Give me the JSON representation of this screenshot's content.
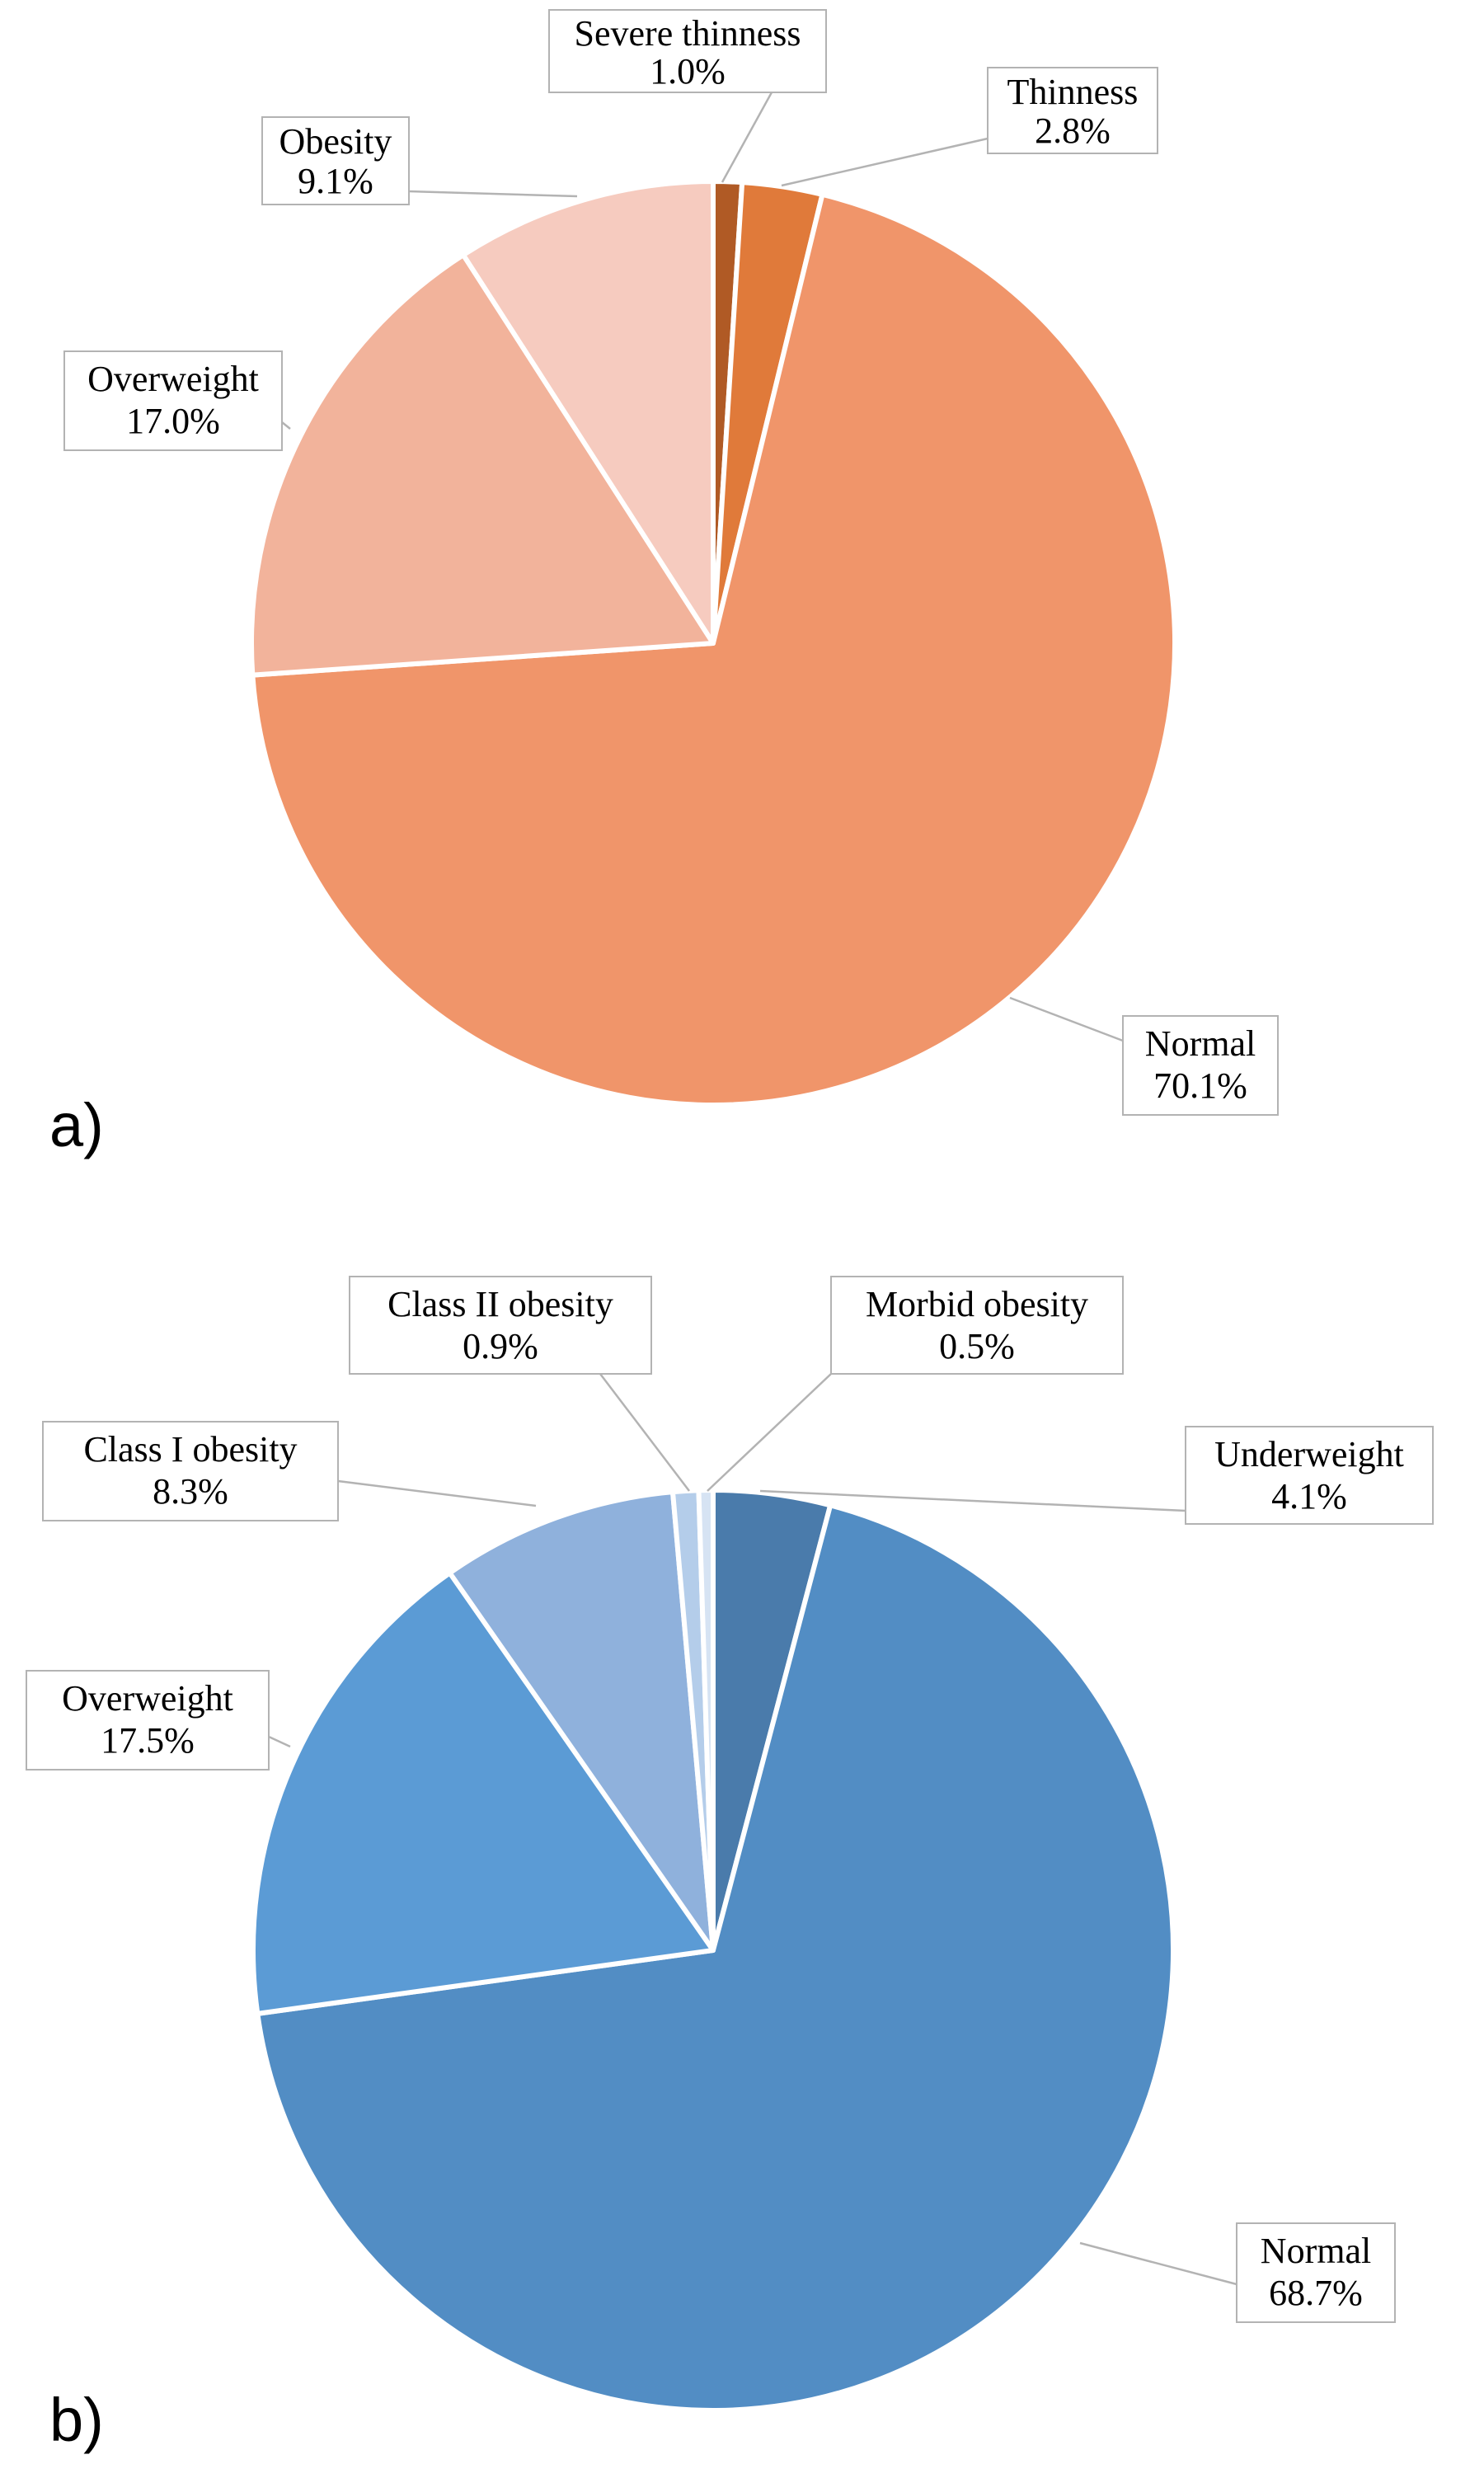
{
  "chart_data": [
    {
      "type": "pie",
      "panel_label": "a)",
      "categories": [
        "Severe thinness",
        "Thinness",
        "Normal",
        "Overweight",
        "Obesity"
      ],
      "values": [
        1.0,
        2.8,
        70.1,
        17.0,
        9.1
      ],
      "value_labels": [
        "1.0%",
        "2.8%",
        "70.1%",
        "17.0%",
        "9.1%"
      ],
      "colors": [
        "#b05a25",
        "#e07a3a",
        "#f0956a",
        "#f2b39b",
        "#f6cbbf"
      ],
      "start_angle": "12 o'clock",
      "direction": "clockwise",
      "legend": "none"
    },
    {
      "type": "pie",
      "panel_label": "b)",
      "categories": [
        "Underweight",
        "Normal",
        "Overweight",
        "Class I obesity",
        "Class II obesity",
        "Morbid obesity"
      ],
      "values": [
        4.1,
        68.7,
        17.5,
        8.3,
        0.9,
        0.5
      ],
      "value_labels": [
        "4.1%",
        "68.7%",
        "17.5%",
        "8.3%",
        "0.9%",
        "0.5%"
      ],
      "colors": [
        "#4a7bab",
        "#528dc4",
        "#5b9bd5",
        "#8fb1dc",
        "#b4cdea",
        "#d6e3f3"
      ],
      "start_angle": "12 o'clock",
      "direction": "clockwise",
      "legend": "none"
    }
  ]
}
